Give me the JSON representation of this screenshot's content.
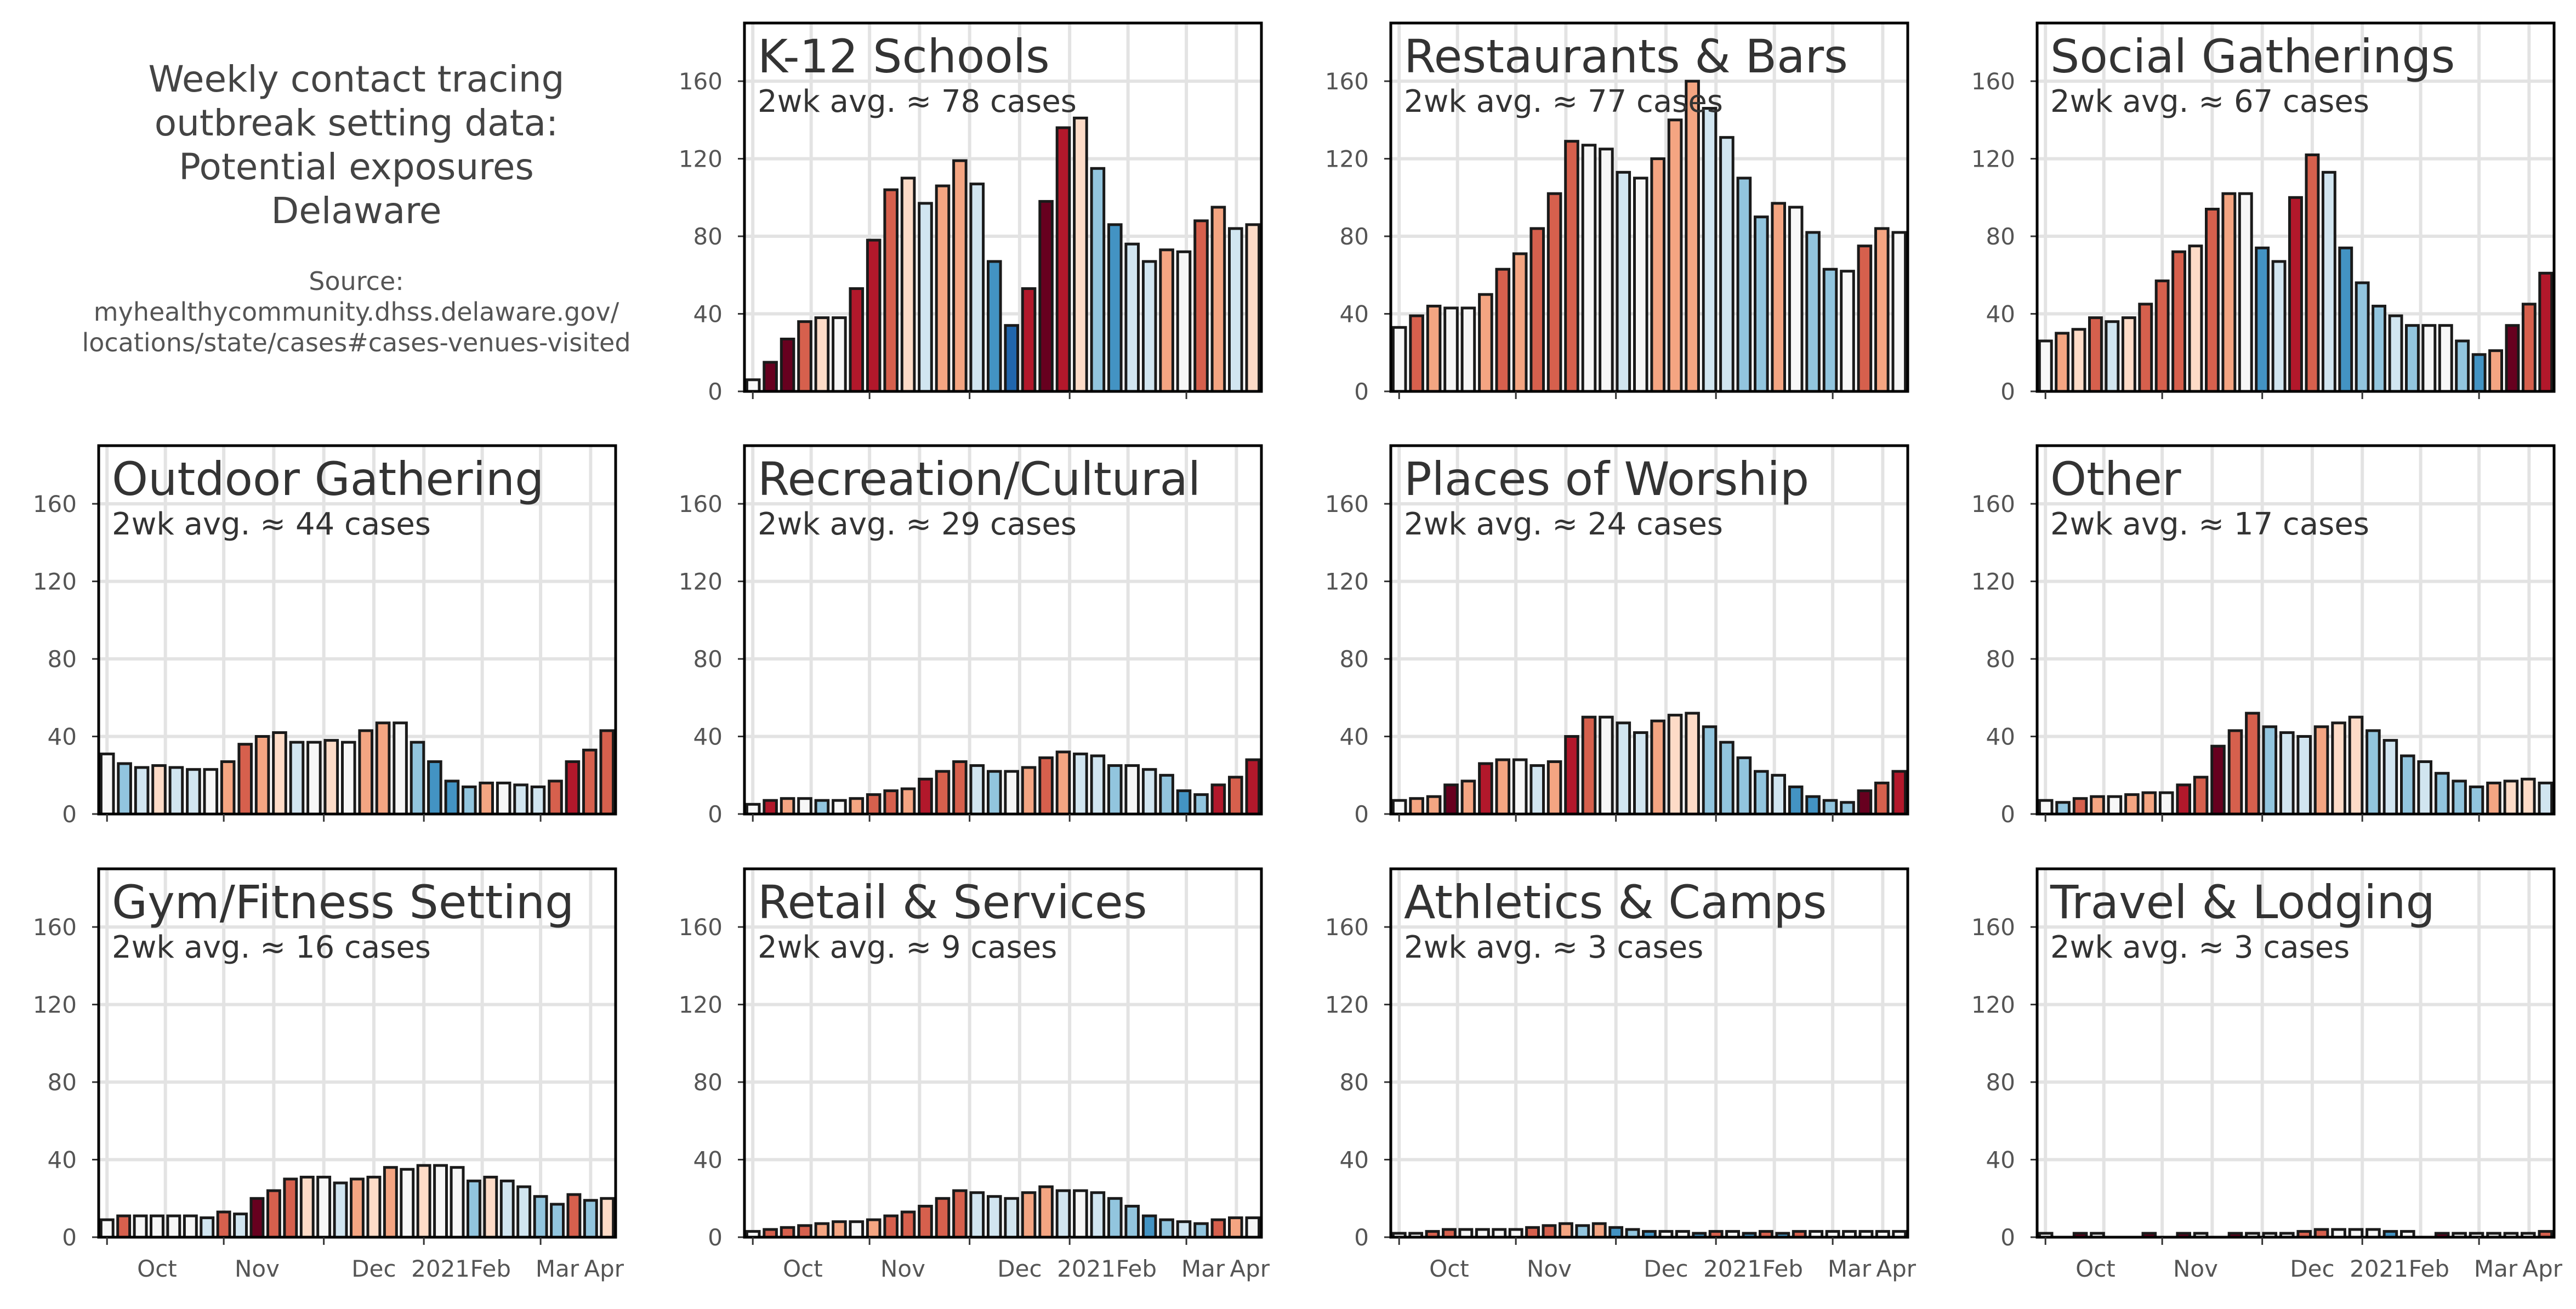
{
  "figure_title": "Weekly contact tracing\noutbreak setting data:\nPotential exposures\nDelaware",
  "source_text": "Source:\nmyhealthycommunity.dhss.delaware.gov/\nlocations/state/cases#cases-venues-visited",
  "chart_data": [
    {
      "type": "bar",
      "title": "K-12 Schools",
      "subtitle": "2wk avg. ≈ 78 cases",
      "values": [
        6,
        15,
        27,
        36,
        38,
        38,
        53,
        78,
        104,
        110,
        97,
        106,
        119,
        107,
        67,
        34,
        53,
        98,
        136,
        141,
        115,
        86,
        76,
        67,
        73,
        72,
        88,
        95,
        84,
        86
      ],
      "ylim": [
        0,
        190
      ],
      "yticks": [
        0,
        40,
        80,
        120,
        160
      ],
      "xticklabels": [
        "Oct",
        "Nov",
        "Dec",
        "2021",
        "Feb",
        "Mar",
        "Apr"
      ]
    },
    {
      "type": "bar",
      "title": "Restaurants & Bars",
      "subtitle": "2wk avg. ≈ 77 cases",
      "values": [
        33,
        39,
        44,
        43,
        43,
        50,
        63,
        71,
        84,
        102,
        129,
        127,
        125,
        113,
        110,
        120,
        140,
        160,
        146,
        131,
        110,
        90,
        97,
        95,
        82,
        63,
        62,
        75,
        84,
        82
      ],
      "ylim": [
        0,
        190
      ],
      "yticks": [
        0,
        40,
        80,
        120,
        160
      ],
      "xticklabels": [
        "Oct",
        "Nov",
        "Dec",
        "2021",
        "Feb",
        "Mar",
        "Apr"
      ]
    },
    {
      "type": "bar",
      "title": "Social Gatherings",
      "subtitle": "2wk avg. ≈ 67 cases",
      "values": [
        26,
        30,
        32,
        38,
        36,
        38,
        45,
        57,
        72,
        75,
        94,
        102,
        102,
        74,
        67,
        100,
        122,
        113,
        74,
        56,
        44,
        39,
        34,
        34,
        34,
        26,
        19,
        21,
        34,
        45,
        61
      ],
      "ylim": [
        0,
        190
      ],
      "yticks": [
        0,
        40,
        80,
        120,
        160
      ],
      "xticklabels": [
        "Oct",
        "Nov",
        "Dec",
        "2021",
        "Feb",
        "Mar",
        "Apr"
      ]
    },
    {
      "type": "bar",
      "title": "Outdoor Gathering",
      "subtitle": "2wk avg. ≈ 44 cases",
      "values": [
        31,
        26,
        24,
        25,
        24,
        23,
        23,
        27,
        36,
        40,
        42,
        37,
        37,
        38,
        37,
        43,
        47,
        47,
        37,
        27,
        17,
        14,
        16,
        16,
        15,
        14,
        17,
        27,
        33,
        43
      ],
      "ylim": [
        0,
        190
      ],
      "yticks": [
        0,
        40,
        80,
        120,
        160
      ],
      "xticklabels": [
        "Oct",
        "Nov",
        "Dec",
        "2021",
        "Feb",
        "Mar",
        "Apr"
      ]
    },
    {
      "type": "bar",
      "title": "Recreation/Cultural",
      "subtitle": "2wk avg. ≈ 29 cases",
      "values": [
        5,
        7,
        8,
        8,
        7,
        7,
        8,
        10,
        12,
        13,
        18,
        22,
        27,
        25,
        22,
        22,
        24,
        29,
        32,
        31,
        30,
        25,
        25,
        23,
        20,
        12,
        10,
        15,
        19,
        28
      ],
      "ylim": [
        0,
        190
      ],
      "yticks": [
        0,
        40,
        80,
        120,
        160
      ],
      "xticklabels": [
        "Oct",
        "Nov",
        "Dec",
        "2021",
        "Feb",
        "Mar",
        "Apr"
      ]
    },
    {
      "type": "bar",
      "title": "Places of Worship",
      "subtitle": "2wk avg. ≈ 24 cases",
      "values": [
        7,
        8,
        9,
        15,
        17,
        26,
        28,
        28,
        25,
        27,
        40,
        50,
        50,
        47,
        42,
        48,
        51,
        52,
        45,
        37,
        29,
        22,
        20,
        14,
        9,
        7,
        6,
        12,
        16,
        22
      ],
      "ylim": [
        0,
        190
      ],
      "yticks": [
        0,
        40,
        80,
        120,
        160
      ],
      "xticklabels": [
        "Oct",
        "Nov",
        "Dec",
        "2021",
        "Feb",
        "Mar",
        "Apr"
      ]
    },
    {
      "type": "bar",
      "title": "Other",
      "subtitle": "2wk avg. ≈ 17 cases",
      "values": [
        7,
        6,
        8,
        9,
        9,
        10,
        11,
        11,
        15,
        19,
        35,
        43,
        52,
        45,
        42,
        40,
        45,
        47,
        50,
        43,
        38,
        30,
        27,
        21,
        17,
        14,
        16,
        17,
        18,
        16
      ],
      "ylim": [
        0,
        190
      ],
      "yticks": [
        0,
        40,
        80,
        120,
        160
      ],
      "xticklabels": [
        "Oct",
        "Nov",
        "Dec",
        "2021",
        "Feb",
        "Mar",
        "Apr"
      ]
    },
    {
      "type": "bar",
      "title": "Gym/Fitness Setting",
      "subtitle": "2wk avg. ≈ 16 cases",
      "values": [
        9,
        11,
        11,
        11,
        11,
        11,
        10,
        13,
        12,
        20,
        24,
        30,
        31,
        31,
        28,
        30,
        31,
        36,
        35,
        37,
        37,
        36,
        29,
        31,
        29,
        26,
        21,
        17,
        22,
        19,
        20
      ],
      "ylim": [
        0,
        190
      ],
      "yticks": [
        0,
        40,
        80,
        120,
        160
      ],
      "xticklabels": [
        "Oct",
        "Nov",
        "Dec",
        "2021",
        "Feb",
        "Mar",
        "Apr"
      ]
    },
    {
      "type": "bar",
      "title": "Retail & Services",
      "subtitle": "2wk avg. ≈ 9 cases",
      "values": [
        3,
        4,
        5,
        6,
        7,
        8,
        8,
        9,
        11,
        13,
        16,
        20,
        24,
        23,
        21,
        20,
        23,
        26,
        24,
        24,
        23,
        20,
        16,
        11,
        9,
        8,
        7,
        9,
        10,
        10
      ],
      "ylim": [
        0,
        190
      ],
      "yticks": [
        0,
        40,
        80,
        120,
        160
      ],
      "xticklabels": [
        "Oct",
        "Nov",
        "Dec",
        "2021",
        "Feb",
        "Mar",
        "Apr"
      ]
    },
    {
      "type": "bar",
      "title": "Athletics & Camps",
      "subtitle": "2wk avg. ≈ 3 cases",
      "values": [
        2,
        2,
        3,
        4,
        4,
        4,
        4,
        4,
        5,
        6,
        7,
        6,
        7,
        5,
        4,
        3,
        3,
        3,
        2,
        3,
        3,
        2,
        3,
        2,
        3,
        3,
        3,
        3,
        3,
        3,
        3
      ],
      "ylim": [
        0,
        190
      ],
      "yticks": [
        0,
        40,
        80,
        120,
        160
      ],
      "xticklabels": [
        "Oct",
        "Nov",
        "Dec",
        "2021",
        "Feb",
        "Mar",
        "Apr"
      ]
    },
    {
      "type": "bar",
      "title": "Travel & Lodging",
      "subtitle": "2wk avg. ≈ 3 cases",
      "values": [
        2,
        0,
        2,
        2,
        0,
        0,
        2,
        0,
        2,
        2,
        0,
        2,
        2,
        2,
        2,
        3,
        4,
        4,
        4,
        4,
        3,
        3,
        0,
        2,
        2,
        2,
        2,
        2,
        2,
        3
      ],
      "ylim": [
        0,
        190
      ],
      "yticks": [
        0,
        40,
        80,
        120,
        160
      ],
      "xticklabels": [
        "Oct",
        "Nov",
        "Dec",
        "2021",
        "Feb",
        "Mar",
        "Apr"
      ]
    }
  ],
  "colors": {
    "diverging_palette": [
      "#67001f",
      "#b2182b",
      "#d6604d",
      "#f4a582",
      "#fddbc7",
      "#f7f7f7",
      "#d1e5f0",
      "#92c5de",
      "#4393c3",
      "#2166ac"
    ],
    "bar_edge": "#1a1a1a",
    "grid": "#e3e3e3",
    "text": "#333333",
    "axis_text": "#555555"
  }
}
